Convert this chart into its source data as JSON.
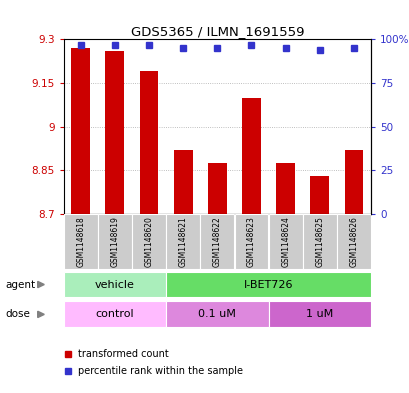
{
  "title": "GDS5365 / ILMN_1691559",
  "samples": [
    "GSM1148618",
    "GSM1148619",
    "GSM1148620",
    "GSM1148621",
    "GSM1148622",
    "GSM1148623",
    "GSM1148624",
    "GSM1148625",
    "GSM1148626"
  ],
  "transformed_counts": [
    9.27,
    9.26,
    9.19,
    8.92,
    8.875,
    9.1,
    8.875,
    8.83,
    8.92
  ],
  "percentile_ranks": [
    97,
    97,
    97,
    95,
    95,
    97,
    95,
    94,
    95
  ],
  "ylim_left": [
    8.7,
    9.3
  ],
  "ylim_right": [
    0,
    100
  ],
  "yticks_left": [
    8.7,
    8.85,
    9.0,
    9.15,
    9.3
  ],
  "yticks_right": [
    0,
    25,
    50,
    75,
    100
  ],
  "ytick_labels_left": [
    "8.7",
    "8.85",
    "9",
    "9.15",
    "9.3"
  ],
  "ytick_labels_right": [
    "0",
    "25",
    "50",
    "75",
    "100%"
  ],
  "bar_color": "#cc0000",
  "dot_color": "#3333cc",
  "bar_bottom": 8.7,
  "agent_groups": [
    {
      "label": "vehicle",
      "start": 0,
      "end": 3,
      "color": "#aaeebb"
    },
    {
      "label": "I-BET726",
      "start": 3,
      "end": 9,
      "color": "#66dd66"
    }
  ],
  "dose_groups": [
    {
      "label": "control",
      "start": 0,
      "end": 3,
      "color": "#ffbbff"
    },
    {
      "label": "0.1 uM",
      "start": 3,
      "end": 6,
      "color": "#dd88dd"
    },
    {
      "label": "1 uM",
      "start": 6,
      "end": 9,
      "color": "#cc66cc"
    }
  ],
  "bg_color": "#ffffff",
  "grid_color": "#aaaaaa",
  "left_tick_color": "#cc0000",
  "right_tick_color": "#3333cc",
  "sample_bg_color": "#cccccc"
}
